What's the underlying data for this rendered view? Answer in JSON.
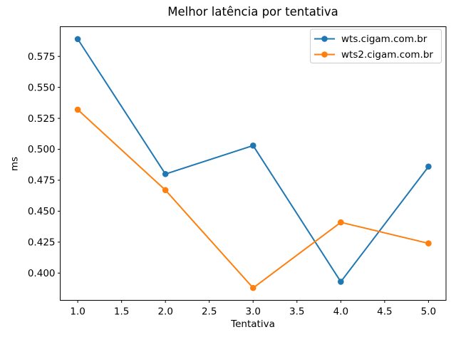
{
  "chart_data": {
    "type": "line",
    "title": "Melhor latência por tentativa",
    "xlabel": "Tentativa",
    "ylabel": "ms",
    "x": [
      1,
      2,
      3,
      4,
      5
    ],
    "series": [
      {
        "name": "wts.cigam.com.br",
        "color": "#1f77b4",
        "values": [
          0.589,
          0.48,
          0.503,
          0.393,
          0.486
        ]
      },
      {
        "name": "wts2.cigam.com.br",
        "color": "#ff7f0e",
        "values": [
          0.532,
          0.467,
          0.388,
          0.441,
          0.424
        ]
      }
    ],
    "xlim": [
      0.8,
      5.2
    ],
    "ylim": [
      0.378,
      0.599
    ],
    "xtick_values": [
      1.0,
      1.5,
      2.0,
      2.5,
      3.0,
      3.5,
      4.0,
      4.5,
      5.0
    ],
    "xtick_labels": [
      "1.0",
      "1.5",
      "2.0",
      "2.5",
      "3.0",
      "3.5",
      "4.0",
      "4.5",
      "5.0"
    ],
    "ytick_values": [
      0.4,
      0.425,
      0.45,
      0.475,
      0.5,
      0.525,
      0.55,
      0.575
    ],
    "ytick_labels": [
      "0.400",
      "0.425",
      "0.450",
      "0.475",
      "0.500",
      "0.525",
      "0.550",
      "0.575"
    ],
    "legend": {
      "position": "upper right",
      "entries": [
        "wts.cigam.com.br",
        "wts2.cigam.com.br"
      ]
    },
    "grid": false,
    "marker": "o",
    "axis_color": "#000000",
    "text_color": "#000000",
    "legend_border_color": "#cccccc",
    "background": "#ffffff"
  }
}
